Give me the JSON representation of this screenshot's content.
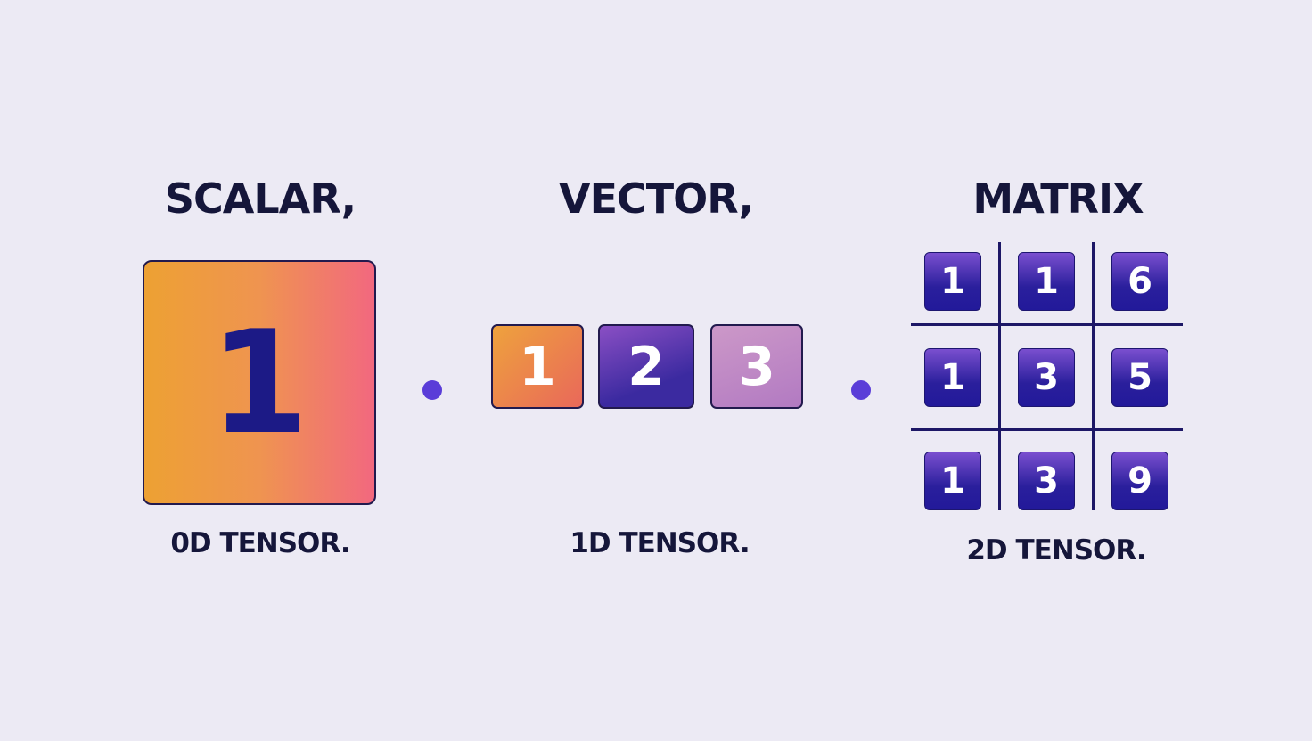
{
  "sections": [
    {
      "title": "SCALAR,",
      "label": "0D TENSOR.",
      "values": [
        "1"
      ]
    },
    {
      "title": "VECTOR,",
      "label": "1D TENSOR.",
      "values": [
        "1",
        "2",
        "3"
      ]
    },
    {
      "title": "MATRIX",
      "label": "2D TENSOR.",
      "values": [
        [
          "1",
          "1",
          "6"
        ],
        [
          "1",
          "3",
          "5"
        ],
        [
          "1",
          "3",
          "9"
        ]
      ]
    }
  ],
  "colors": {
    "background": "#eceaf4",
    "text": "#15163a",
    "separator_dot": "#5a3dd8",
    "scalar_gradient": [
      "#eda133",
      "#f2687f"
    ],
    "matrix_cell": "#2a1f9c"
  }
}
